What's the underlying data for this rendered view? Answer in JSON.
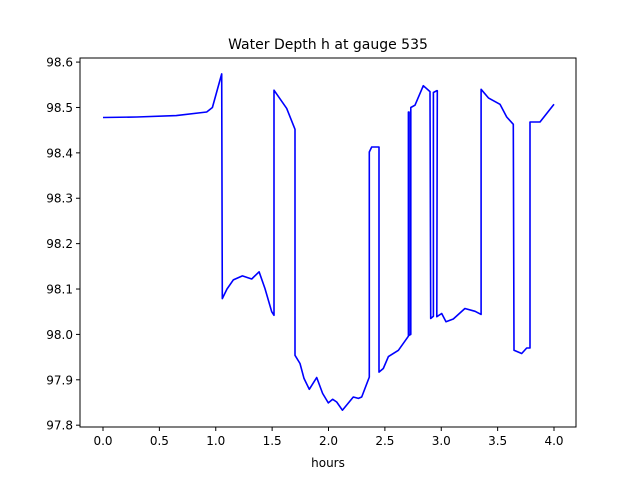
{
  "chart_data": {
    "type": "line",
    "title": "Water Depth h at gauge 535",
    "xlabel": "hours",
    "ylabel": "",
    "xlim": [
      -0.204,
      4.195
    ],
    "ylim": [
      97.796,
      98.609
    ],
    "xticks": [
      0.0,
      0.5,
      1.0,
      1.5,
      2.0,
      2.5,
      3.0,
      3.5,
      4.0
    ],
    "xtick_labels": [
      "0.0",
      "0.5",
      "1.0",
      "1.5",
      "2.0",
      "2.5",
      "3.0",
      "3.5",
      "4.0"
    ],
    "yticks": [
      97.8,
      97.9,
      98.0,
      98.1,
      98.2,
      98.3,
      98.4,
      98.5,
      98.6
    ],
    "ytick_labels": [
      "97.8",
      "97.9",
      "98.0",
      "98.1",
      "98.2",
      "98.3",
      "98.4",
      "98.5",
      "98.6"
    ],
    "grid": false,
    "series": [
      {
        "name": "h",
        "color": "#0000ff",
        "x": [
          0.0,
          0.3,
          0.65,
          0.92,
          0.97,
          1.053,
          1.058,
          1.1,
          1.156,
          1.236,
          1.319,
          1.384,
          1.437,
          1.496,
          1.517,
          1.517,
          1.629,
          1.703,
          1.703,
          1.747,
          1.783,
          1.83,
          1.895,
          1.948,
          1.998,
          2.037,
          2.073,
          2.123,
          2.22,
          2.265,
          2.294,
          2.362,
          2.362,
          2.383,
          2.448,
          2.448,
          2.486,
          2.531,
          2.62,
          2.709,
          2.709,
          2.715,
          2.715,
          2.73,
          2.73,
          2.767,
          2.841,
          2.9,
          2.906,
          2.93,
          2.93,
          2.96,
          2.965,
          2.96,
          3.004,
          3.042,
          3.107,
          3.21,
          3.3,
          3.353,
          3.353,
          3.418,
          3.521,
          3.58,
          3.639,
          3.645,
          3.713,
          3.758,
          3.787,
          3.787,
          3.876,
          4.0
        ],
        "y": [
          98.478,
          98.479,
          98.482,
          98.49,
          98.5,
          98.574,
          98.079,
          98.1,
          98.12,
          98.129,
          98.122,
          98.138,
          98.101,
          98.05,
          98.042,
          98.538,
          98.498,
          98.452,
          97.954,
          97.936,
          97.903,
          97.879,
          97.905,
          97.87,
          97.849,
          97.857,
          97.851,
          97.833,
          97.862,
          97.859,
          97.862,
          97.906,
          98.402,
          98.413,
          98.413,
          97.917,
          97.925,
          97.951,
          97.965,
          97.996,
          98.49,
          98.49,
          97.998,
          98.0,
          98.5,
          98.505,
          98.548,
          98.535,
          98.035,
          98.04,
          98.533,
          98.537,
          98.537,
          98.039,
          98.046,
          98.028,
          98.034,
          98.057,
          98.051,
          98.044,
          98.54,
          98.521,
          98.507,
          98.479,
          98.463,
          97.965,
          97.958,
          97.97,
          97.97,
          98.468,
          98.468,
          98.507
        ]
      }
    ]
  }
}
